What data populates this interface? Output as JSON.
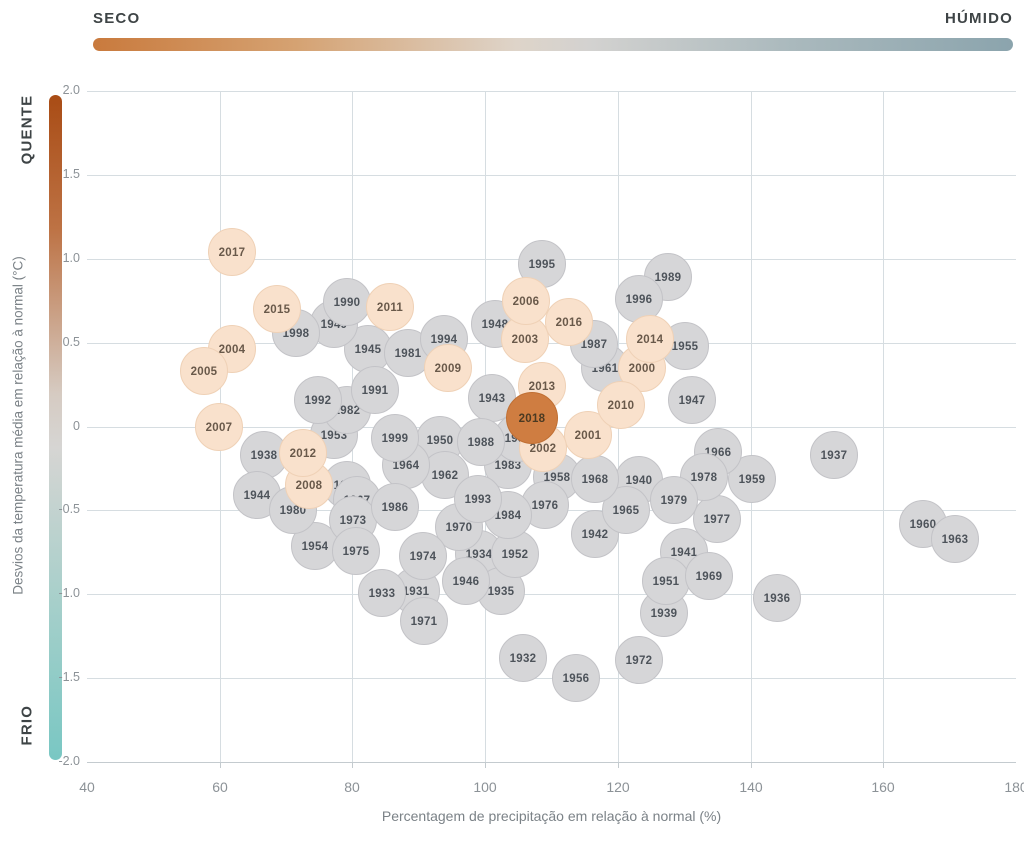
{
  "legend_top": {
    "left_label": "SECO",
    "right_label": "HÚMIDO",
    "gradient": [
      "#c97a3d",
      "#ded4c9",
      "#8ba4ad"
    ]
  },
  "legend_left": {
    "top_label": "QUENTE",
    "bottom_label": "FRIO",
    "gradient": [
      "#a94c15",
      "#d6d5d3",
      "#79c7c3"
    ]
  },
  "axes": {
    "x_title": "Percentagem de precipitação em relação à normal (%)",
    "y_title": "Desvios da temperatura média em relação à normal (°C)",
    "x_ticks": [
      "40",
      "60",
      "80",
      "100",
      "120",
      "140",
      "160",
      "180"
    ],
    "y_ticks": [
      "2.0",
      "1.5",
      "1.0",
      "0.5",
      "0",
      "-0.5",
      "-1.0",
      "-1.5",
      "-2.0"
    ]
  },
  "chart_data": {
    "type": "scatter",
    "xlabel": "Percentagem de precipitação em relação à normal (%)",
    "ylabel": "Desvios da temperatura média em relação à normal (°C)",
    "xlim": [
      40,
      180
    ],
    "ylim": [
      -2,
      2
    ],
    "grid": true,
    "legend": {
      "dry_to_wet": [
        "SECO",
        "HÚMIDO"
      ],
      "warm_to_cold": [
        "QUENTE",
        "FRIO"
      ]
    },
    "colors": {
      "historic": "#d6d6d8",
      "recent_dry": "#f9e1cc",
      "record_2018": "#cf7d41"
    },
    "points": [
      {
        "year": "1931",
        "precip_pct": 89.6,
        "temp_dev_c": -0.98,
        "group": "historic"
      },
      {
        "year": "1932",
        "precip_pct": 105.7,
        "temp_dev_c": -1.38,
        "group": "historic"
      },
      {
        "year": "1933",
        "precip_pct": 84.5,
        "temp_dev_c": -0.99,
        "group": "historic"
      },
      {
        "year": "1934",
        "precip_pct": 99.1,
        "temp_dev_c": -0.76,
        "group": "historic"
      },
      {
        "year": "1935",
        "precip_pct": 102.4,
        "temp_dev_c": -0.98,
        "group": "historic"
      },
      {
        "year": "1936",
        "precip_pct": 144.0,
        "temp_dev_c": -1.02,
        "group": "historic"
      },
      {
        "year": "1937",
        "precip_pct": 152.5,
        "temp_dev_c": -0.17,
        "group": "historic"
      },
      {
        "year": "1938",
        "precip_pct": 66.7,
        "temp_dev_c": -0.17,
        "group": "historic"
      },
      {
        "year": "1939",
        "precip_pct": 127.0,
        "temp_dev_c": -1.11,
        "group": "historic"
      },
      {
        "year": "1940",
        "precip_pct": 123.2,
        "temp_dev_c": -0.32,
        "group": "historic"
      },
      {
        "year": "1941",
        "precip_pct": 130.0,
        "temp_dev_c": -0.75,
        "group": "historic"
      },
      {
        "year": "1942",
        "precip_pct": 116.6,
        "temp_dev_c": -0.64,
        "group": "historic"
      },
      {
        "year": "1943",
        "precip_pct": 101.1,
        "temp_dev_c": 0.17,
        "group": "historic"
      },
      {
        "year": "1944",
        "precip_pct": 65.6,
        "temp_dev_c": -0.41,
        "group": "historic"
      },
      {
        "year": "1945",
        "precip_pct": 82.4,
        "temp_dev_c": 0.46,
        "group": "historic"
      },
      {
        "year": "1946",
        "precip_pct": 97.1,
        "temp_dev_c": -0.92,
        "group": "historic"
      },
      {
        "year": "1947",
        "precip_pct": 131.2,
        "temp_dev_c": 0.16,
        "group": "historic"
      },
      {
        "year": "1948",
        "precip_pct": 101.5,
        "temp_dev_c": 0.61,
        "group": "historic"
      },
      {
        "year": "1949",
        "precip_pct": 77.2,
        "temp_dev_c": 0.61,
        "group": "historic"
      },
      {
        "year": "1950",
        "precip_pct": 93.2,
        "temp_dev_c": -0.08,
        "group": "historic"
      },
      {
        "year": "1951",
        "precip_pct": 127.3,
        "temp_dev_c": -0.92,
        "group": "historic"
      },
      {
        "year": "1952",
        "precip_pct": 104.5,
        "temp_dev_c": -0.76,
        "group": "historic"
      },
      {
        "year": "1953",
        "precip_pct": 77.2,
        "temp_dev_c": -0.05,
        "group": "historic"
      },
      {
        "year": "1954",
        "precip_pct": 74.4,
        "temp_dev_c": -0.71,
        "group": "historic"
      },
      {
        "year": "1955",
        "precip_pct": 130.1,
        "temp_dev_c": 0.48,
        "group": "historic"
      },
      {
        "year": "1956",
        "precip_pct": 113.7,
        "temp_dev_c": -1.5,
        "group": "historic"
      },
      {
        "year": "1957",
        "precip_pct": 79.2,
        "temp_dev_c": -0.35,
        "group": "historic"
      },
      {
        "year": "1958",
        "precip_pct": 110.8,
        "temp_dev_c": -0.3,
        "group": "historic"
      },
      {
        "year": "1959",
        "precip_pct": 140.2,
        "temp_dev_c": -0.31,
        "group": "historic"
      },
      {
        "year": "1960",
        "precip_pct": 166.0,
        "temp_dev_c": -0.58,
        "group": "historic"
      },
      {
        "year": "1961",
        "precip_pct": 118.1,
        "temp_dev_c": 0.35,
        "group": "historic"
      },
      {
        "year": "1962",
        "precip_pct": 94.0,
        "temp_dev_c": -0.29,
        "group": "historic"
      },
      {
        "year": "1963",
        "precip_pct": 170.8,
        "temp_dev_c": -0.67,
        "group": "historic"
      },
      {
        "year": "1964",
        "precip_pct": 88.1,
        "temp_dev_c": -0.23,
        "group": "historic"
      },
      {
        "year": "1965",
        "precip_pct": 121.3,
        "temp_dev_c": -0.5,
        "group": "historic"
      },
      {
        "year": "1966",
        "precip_pct": 135.1,
        "temp_dev_c": -0.15,
        "group": "historic"
      },
      {
        "year": "1967",
        "precip_pct": 80.7,
        "temp_dev_c": -0.44,
        "group": "historic"
      },
      {
        "year": "1968",
        "precip_pct": 116.6,
        "temp_dev_c": -0.31,
        "group": "historic"
      },
      {
        "year": "1969",
        "precip_pct": 133.8,
        "temp_dev_c": -0.89,
        "group": "historic"
      },
      {
        "year": "1970",
        "precip_pct": 96.1,
        "temp_dev_c": -0.6,
        "group": "historic"
      },
      {
        "year": "1971",
        "precip_pct": 90.8,
        "temp_dev_c": -1.16,
        "group": "historic"
      },
      {
        "year": "1972",
        "precip_pct": 123.2,
        "temp_dev_c": -1.39,
        "group": "historic"
      },
      {
        "year": "1973",
        "precip_pct": 80.1,
        "temp_dev_c": -0.56,
        "group": "historic"
      },
      {
        "year": "1974",
        "precip_pct": 90.7,
        "temp_dev_c": -0.77,
        "group": "historic"
      },
      {
        "year": "1975",
        "precip_pct": 80.6,
        "temp_dev_c": -0.74,
        "group": "historic"
      },
      {
        "year": "1976",
        "precip_pct": 109.0,
        "temp_dev_c": -0.47,
        "group": "historic"
      },
      {
        "year": "1977",
        "precip_pct": 135.0,
        "temp_dev_c": -0.55,
        "group": "historic"
      },
      {
        "year": "1978",
        "precip_pct": 133.0,
        "temp_dev_c": -0.3,
        "group": "historic"
      },
      {
        "year": "1979",
        "precip_pct": 128.5,
        "temp_dev_c": -0.44,
        "group": "historic"
      },
      {
        "year": "1980",
        "precip_pct": 71.1,
        "temp_dev_c": -0.5,
        "group": "historic"
      },
      {
        "year": "1981",
        "precip_pct": 88.4,
        "temp_dev_c": 0.44,
        "group": "historic"
      },
      {
        "year": "1982",
        "precip_pct": 79.2,
        "temp_dev_c": 0.1,
        "group": "historic"
      },
      {
        "year": "1983",
        "precip_pct": 103.5,
        "temp_dev_c": -0.23,
        "group": "historic"
      },
      {
        "year": "1984",
        "precip_pct": 103.5,
        "temp_dev_c": -0.53,
        "group": "historic"
      },
      {
        "year": "1985",
        "precip_pct": 105.0,
        "temp_dev_c": -0.07,
        "group": "historic"
      },
      {
        "year": "1986",
        "precip_pct": 86.4,
        "temp_dev_c": -0.48,
        "group": "historic"
      },
      {
        "year": "1987",
        "precip_pct": 116.4,
        "temp_dev_c": 0.49,
        "group": "historic"
      },
      {
        "year": "1988",
        "precip_pct": 99.4,
        "temp_dev_c": -0.09,
        "group": "historic"
      },
      {
        "year": "1989",
        "precip_pct": 127.6,
        "temp_dev_c": 0.89,
        "group": "historic"
      },
      {
        "year": "1990",
        "precip_pct": 79.2,
        "temp_dev_c": 0.74,
        "group": "historic"
      },
      {
        "year": "1991",
        "precip_pct": 83.4,
        "temp_dev_c": 0.22,
        "group": "historic"
      },
      {
        "year": "1992",
        "precip_pct": 74.8,
        "temp_dev_c": 0.16,
        "group": "historic"
      },
      {
        "year": "1993",
        "precip_pct": 98.9,
        "temp_dev_c": -0.43,
        "group": "historic"
      },
      {
        "year": "1994",
        "precip_pct": 93.8,
        "temp_dev_c": 0.52,
        "group": "historic"
      },
      {
        "year": "1995",
        "precip_pct": 108.6,
        "temp_dev_c": 0.97,
        "group": "historic"
      },
      {
        "year": "1996",
        "precip_pct": 123.2,
        "temp_dev_c": 0.76,
        "group": "historic"
      },
      {
        "year": "1998",
        "precip_pct": 71.5,
        "temp_dev_c": 0.56,
        "group": "historic"
      },
      {
        "year": "1999",
        "precip_pct": 86.4,
        "temp_dev_c": -0.07,
        "group": "historic"
      },
      {
        "year": "2000",
        "precip_pct": 123.7,
        "temp_dev_c": 0.35,
        "group": "recent-dry"
      },
      {
        "year": "2001",
        "precip_pct": 115.5,
        "temp_dev_c": -0.05,
        "group": "recent-dry"
      },
      {
        "year": "2002",
        "precip_pct": 108.7,
        "temp_dev_c": -0.13,
        "group": "recent-dry"
      },
      {
        "year": "2003",
        "precip_pct": 106.0,
        "temp_dev_c": 0.52,
        "group": "recent-dry"
      },
      {
        "year": "2004",
        "precip_pct": 61.9,
        "temp_dev_c": 0.46,
        "group": "recent-dry"
      },
      {
        "year": "2005",
        "precip_pct": 57.6,
        "temp_dev_c": 0.33,
        "group": "recent-dry"
      },
      {
        "year": "2006",
        "precip_pct": 106.2,
        "temp_dev_c": 0.75,
        "group": "recent-dry"
      },
      {
        "year": "2007",
        "precip_pct": 59.9,
        "temp_dev_c": 0.0,
        "group": "recent-dry"
      },
      {
        "year": "2008",
        "precip_pct": 73.5,
        "temp_dev_c": -0.35,
        "group": "recent-dry"
      },
      {
        "year": "2009",
        "precip_pct": 94.4,
        "temp_dev_c": 0.35,
        "group": "recent-dry"
      },
      {
        "year": "2010",
        "precip_pct": 120.5,
        "temp_dev_c": 0.13,
        "group": "recent-dry"
      },
      {
        "year": "2011",
        "precip_pct": 85.7,
        "temp_dev_c": 0.71,
        "group": "recent-dry"
      },
      {
        "year": "2012",
        "precip_pct": 72.6,
        "temp_dev_c": -0.16,
        "group": "recent-dry"
      },
      {
        "year": "2013",
        "precip_pct": 108.6,
        "temp_dev_c": 0.24,
        "group": "recent-dry"
      },
      {
        "year": "2014",
        "precip_pct": 124.9,
        "temp_dev_c": 0.52,
        "group": "recent-dry"
      },
      {
        "year": "2015",
        "precip_pct": 68.6,
        "temp_dev_c": 0.7,
        "group": "recent-dry"
      },
      {
        "year": "2016",
        "precip_pct": 112.7,
        "temp_dev_c": 0.62,
        "group": "recent-dry"
      },
      {
        "year": "2017",
        "precip_pct": 61.9,
        "temp_dev_c": 1.04,
        "group": "recent-dry"
      },
      {
        "year": "2018",
        "precip_pct": 107.1,
        "temp_dev_c": 0.05,
        "group": "record"
      }
    ]
  }
}
